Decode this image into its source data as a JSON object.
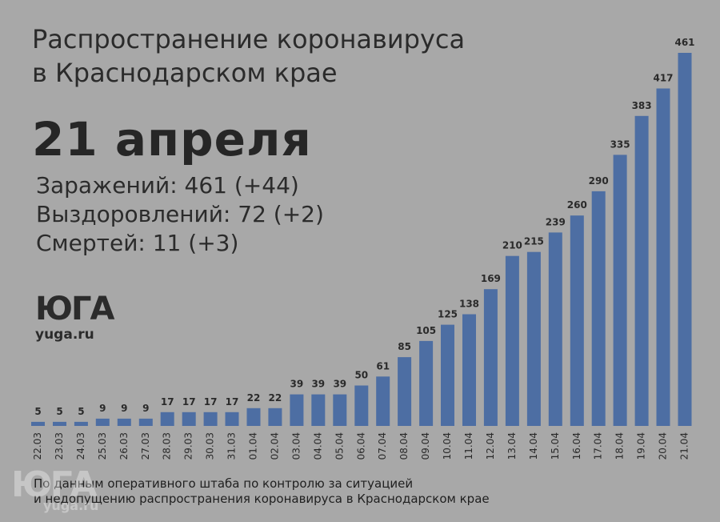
{
  "header": {
    "title_line1": "Распространение коронавируса",
    "title_line2": "в Краснодарском крае",
    "date": "21 апреля"
  },
  "stats": {
    "infected": "Заражений: 461 (+44)",
    "recovered": "Выздоровлений: 72 (+2)",
    "deaths": "Смертей: 11 (+3)"
  },
  "logo": {
    "mark": "ЮГА",
    "site": "yuga.ru"
  },
  "footer": {
    "line1": "По данным оперативного штаба по контролю за ситуацией",
    "line2": "и недопущению распространения коронавируса в Краснодарском крае"
  },
  "watermark": {
    "mark": "ЮГА",
    "site": "yuga.ru"
  },
  "colors": {
    "background": "#a8a8a8",
    "bar": "#4d6ea3",
    "text": "#2b2b2b"
  },
  "chart_data": {
    "type": "bar",
    "title": "",
    "xlabel": "",
    "ylabel": "",
    "grid": false,
    "legend": "none",
    "ylim": [
      0,
      461
    ],
    "categories": [
      "22.03",
      "23.03",
      "24.03",
      "25.03",
      "26.03",
      "27.03",
      "28.03",
      "29.03",
      "30.03",
      "31.03",
      "01.04",
      "02.04",
      "03.04",
      "04.04",
      "05.04",
      "06.04",
      "07.04",
      "08.04",
      "09.04",
      "10.04",
      "11.04",
      "12.04",
      "13.04",
      "14.04",
      "15.04",
      "16.04",
      "17.04",
      "18.04",
      "19.04",
      "20.04",
      "21.04"
    ],
    "values": [
      5,
      5,
      5,
      9,
      9,
      9,
      17,
      17,
      17,
      17,
      22,
      22,
      39,
      39,
      39,
      50,
      61,
      85,
      105,
      125,
      138,
      169,
      210,
      215,
      239,
      260,
      290,
      335,
      383,
      417,
      461
    ]
  }
}
